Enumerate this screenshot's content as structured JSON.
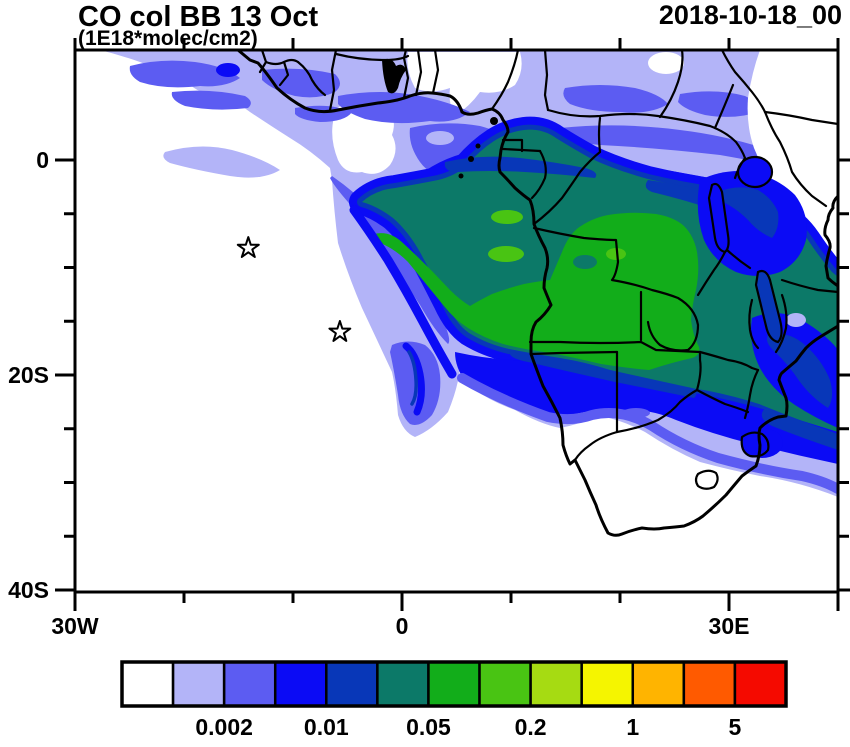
{
  "header": {
    "title": "CO col BB 13 Oct",
    "subtitle": "(1E18*molec/cm2)",
    "datetime": "2018-10-18_00"
  },
  "chart_data": {
    "type": "heatmap",
    "subtype": "filled-contour-map",
    "title": "CO col BB 13 Oct",
    "units": "1E18*molec/cm2",
    "datetime": "2018-10-18_00",
    "region": "Africa and South Atlantic",
    "x_axis": {
      "label": "longitude",
      "range_deg": [
        -30,
        40
      ],
      "major_ticks": [
        {
          "value": -30,
          "label": "30W"
        },
        {
          "value": 0,
          "label": "0"
        },
        {
          "value": 30,
          "label": "30E"
        }
      ],
      "minor_ticks": [
        -20,
        -10,
        10,
        20
      ],
      "edge_ticks": [
        40
      ]
    },
    "y_axis": {
      "label": "latitude",
      "range_deg": [
        10,
        -41
      ],
      "major_ticks": [
        {
          "value": 0,
          "label": "0"
        },
        {
          "value": -20,
          "label": "20S"
        },
        {
          "value": -40,
          "label": "40S"
        }
      ],
      "minor_ticks": [
        -5,
        -10,
        -15,
        -25,
        -30,
        -35
      ]
    },
    "contour_levels": [
      0.001,
      0.002,
      0.005,
      0.01,
      0.02,
      0.05,
      0.1,
      0.2,
      0.5,
      1,
      2,
      5
    ],
    "labeled_levels": [
      "0.002",
      "0.01",
      "0.05",
      "0.2",
      "1",
      "5"
    ],
    "palette": [
      "#ffffff",
      "#b3b4f8",
      "#5c5cf2",
      "#0b0bf5",
      "#0837b8",
      "#0c7968",
      "#12ad1a",
      "#49c413",
      "#a6db12",
      "#f5f500",
      "#ffb400",
      "#ff5a00",
      "#f50a00"
    ],
    "max_level_on_map": "0.2-0.5 (bright green core over Angola/DRC/Zambia)",
    "description": "Biomass-burning CO column plume covering central and southern Africa, with a green maximum core over Angola/DRC/Zambia and a layered blue plume streaming southwest over the South Atlantic; light lavender band across the Sahel and a fringe sweeping south of 20S to the map edge.",
    "markers": [
      {
        "type": "star",
        "lon": -14.1,
        "lat": -8.2
      },
      {
        "type": "star",
        "lon": -5.7,
        "lat": -16.0
      }
    ]
  },
  "colorbar": {
    "colors": [
      "#ffffff",
      "#b3b4f8",
      "#5c5cf2",
      "#0b0bf5",
      "#0837b8",
      "#0c7968",
      "#12ad1a",
      "#49c413",
      "#a6db12",
      "#f5f500",
      "#ffb400",
      "#ff5a00",
      "#f50a00"
    ],
    "labels": [
      {
        "text": "0.002",
        "boundary": 2
      },
      {
        "text": "0.01",
        "boundary": 4
      },
      {
        "text": "0.05",
        "boundary": 6
      },
      {
        "text": "0.2",
        "boundary": 8
      },
      {
        "text": "1",
        "boundary": 10
      },
      {
        "text": "5",
        "boundary": 12
      }
    ]
  }
}
